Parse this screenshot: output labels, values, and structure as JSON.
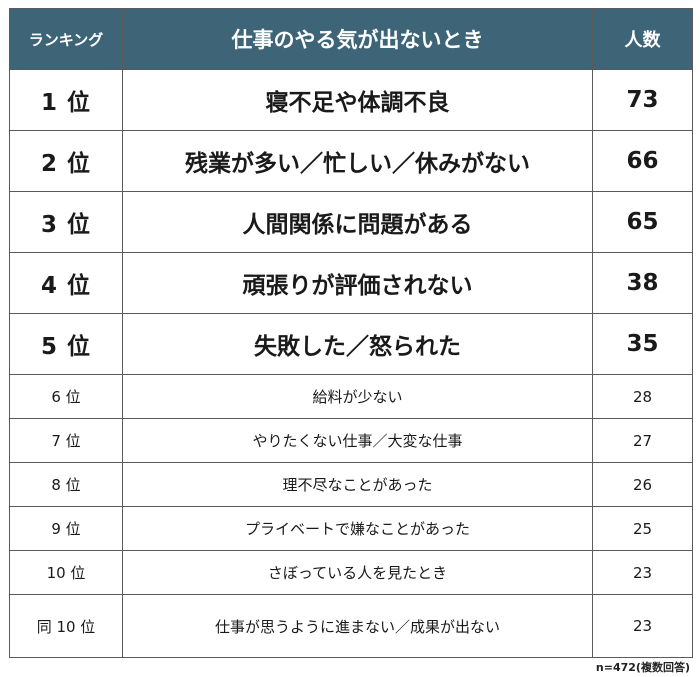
{
  "header": {
    "rank": "ランキング",
    "reason": "仕事のやる気が出ないとき",
    "count": "人数"
  },
  "rows": [
    {
      "rank": "1 位",
      "reason": "寝不足や体調不良",
      "count": "73"
    },
    {
      "rank": "2 位",
      "reason": "残業が多い／忙しい／休みがない",
      "count": "66"
    },
    {
      "rank": "3 位",
      "reason": "人間関係に問題がある",
      "count": "65"
    },
    {
      "rank": "4 位",
      "reason": "頑張りが評価されない",
      "count": "38"
    },
    {
      "rank": "5 位",
      "reason": "失敗した／怒られた",
      "count": "35"
    },
    {
      "rank": "6 位",
      "reason": "給料が少ない",
      "count": "28"
    },
    {
      "rank": "7 位",
      "reason": "やりたくない仕事／大変な仕事",
      "count": "27"
    },
    {
      "rank": "8 位",
      "reason": "理不尽なことがあった",
      "count": "26"
    },
    {
      "rank": "9 位",
      "reason": "プライベートで嫌なことがあった",
      "count": "25"
    },
    {
      "rank": "10 位",
      "reason": "さぼっている人を見たとき",
      "count": "23"
    },
    {
      "rank": "同 10 位",
      "reason": "仕事が思うように進まない／成果が出ない",
      "count": "23"
    }
  ],
  "note": "n=472(複数回答)"
}
